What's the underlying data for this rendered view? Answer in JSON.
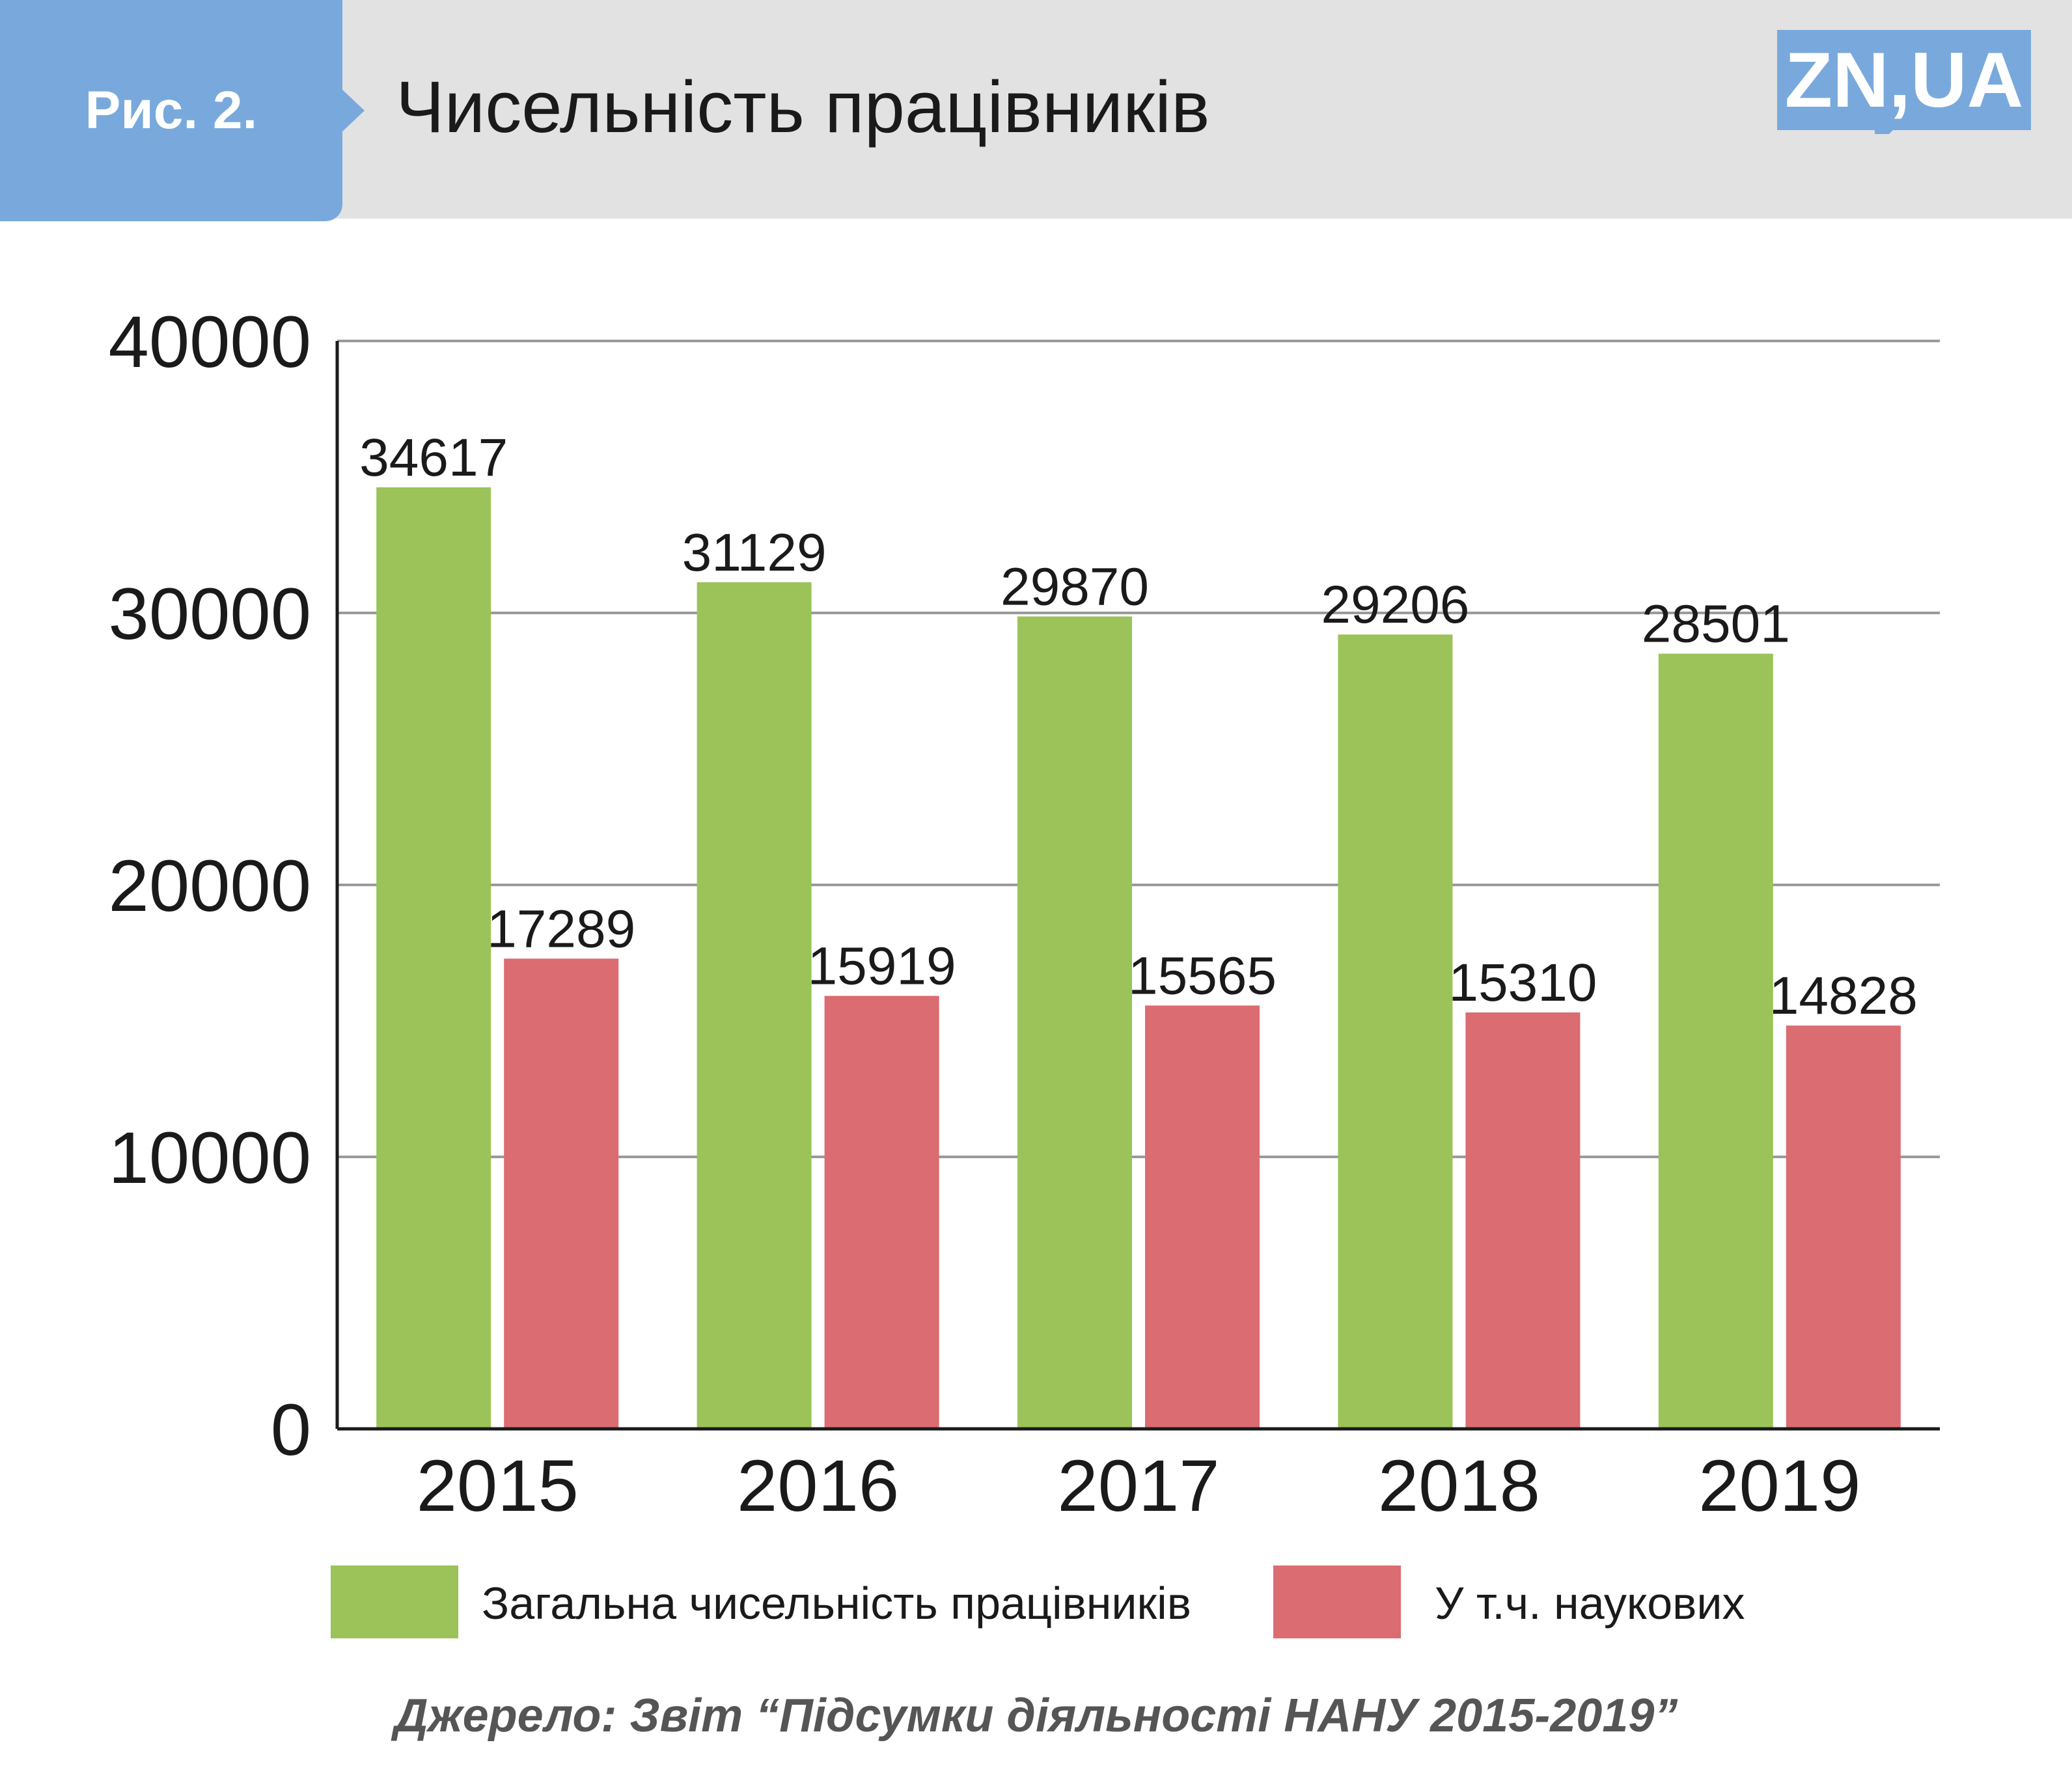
{
  "header": {
    "figure_label": "Рис. 2.",
    "title": "Чисельність працівників",
    "logo_text": "ZN,UA",
    "band_color": "#e2e2e2",
    "badge_color": "#79a9dc",
    "logo_color": "#79a9dc"
  },
  "chart_data": {
    "type": "bar",
    "categories": [
      "2015",
      "2016",
      "2017",
      "2018",
      "2019"
    ],
    "series": [
      {
        "name": "Загальна чисельність працівників",
        "color": "#9bc35a",
        "values": [
          34617,
          31129,
          29870,
          29206,
          28501
        ]
      },
      {
        "name": "У т.ч. наукових",
        "color": "#db6c71",
        "values": [
          17289,
          15919,
          15565,
          15310,
          14828
        ]
      }
    ],
    "ylim": [
      0,
      40000
    ],
    "yticks": [
      0,
      10000,
      20000,
      30000,
      40000
    ],
    "ytick_labels": [
      "0",
      "10000",
      "20000",
      "30000",
      "40000"
    ],
    "grid": true,
    "data_labels": true,
    "legend_position": "bottom"
  },
  "footer": {
    "source": "Джерело: Звіт “Підсумки діяльності НАНУ 2015-2019”"
  }
}
